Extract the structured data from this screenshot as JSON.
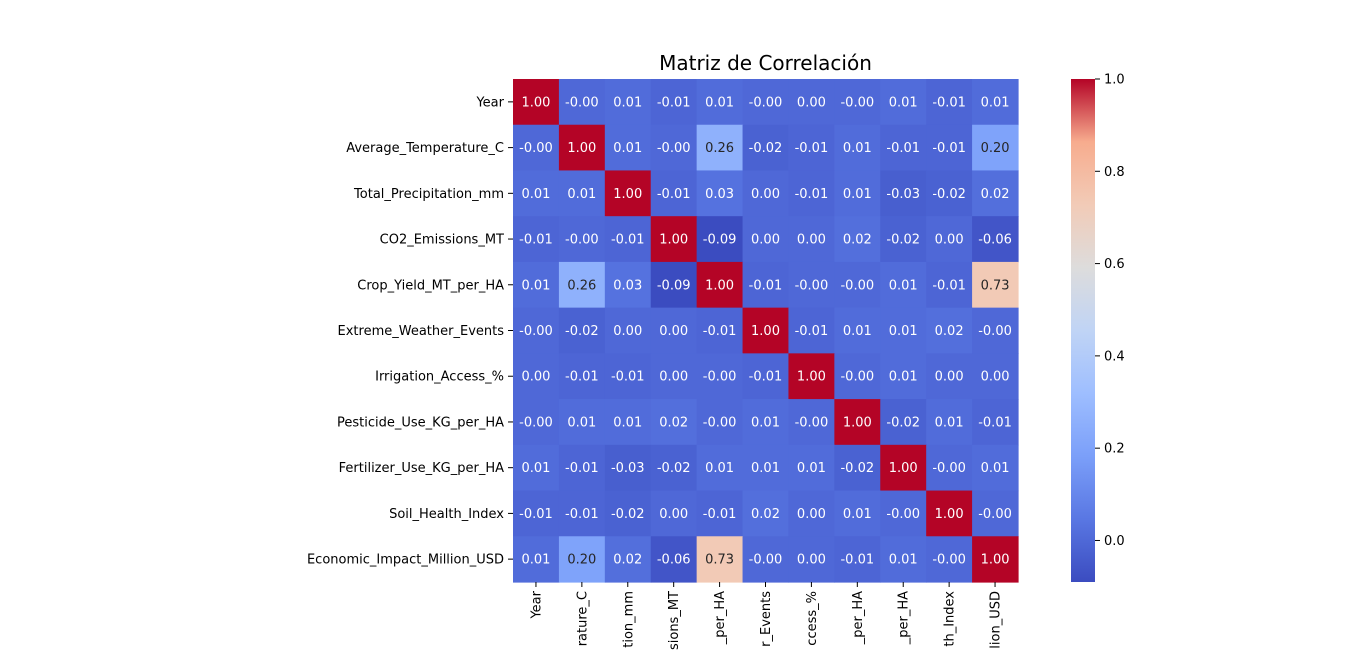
{
  "chart_data": {
    "type": "heatmap",
    "title": "Matriz de Correlación",
    "row_labels": [
      "Year",
      "Average_Temperature_C",
      "Total_Precipitation_mm",
      "CO2_Emissions_MT",
      "Crop_Yield_MT_per_HA",
      "Extreme_Weather_Events",
      "Irrigation_Access_%",
      "Pesticide_Use_KG_per_HA",
      "Fertilizer_Use_KG_per_HA",
      "Soil_Health_Index",
      "Economic_Impact_Million_USD"
    ],
    "col_labels_visible": [
      "Year",
      "rature_C",
      "tion_mm",
      "sions_MT",
      "_per_HA",
      "r_Events",
      "ccess_%",
      "_per_HA",
      "_per_HA",
      "th_Index",
      "lion_USD"
    ],
    "values": [
      [
        1.0,
        -0.0,
        0.01,
        -0.01,
        0.01,
        -0.0,
        0.0,
        -0.0,
        0.01,
        -0.01,
        0.01
      ],
      [
        -0.0,
        1.0,
        0.01,
        -0.0,
        0.26,
        -0.02,
        -0.01,
        0.01,
        -0.01,
        -0.01,
        0.2
      ],
      [
        0.01,
        0.01,
        1.0,
        -0.01,
        0.03,
        0.0,
        -0.01,
        0.01,
        -0.03,
        -0.02,
        0.02
      ],
      [
        -0.01,
        -0.0,
        -0.01,
        1.0,
        -0.09,
        0.0,
        0.0,
        0.02,
        -0.02,
        0.0,
        -0.06
      ],
      [
        0.01,
        0.26,
        0.03,
        -0.09,
        1.0,
        -0.01,
        -0.0,
        -0.0,
        0.01,
        -0.01,
        0.73
      ],
      [
        -0.0,
        -0.02,
        0.0,
        0.0,
        -0.01,
        1.0,
        -0.01,
        0.01,
        0.01,
        0.02,
        -0.0
      ],
      [
        0.0,
        -0.01,
        -0.01,
        0.0,
        -0.0,
        -0.01,
        1.0,
        -0.0,
        0.01,
        0.0,
        0.0
      ],
      [
        -0.0,
        0.01,
        0.01,
        0.02,
        -0.0,
        0.01,
        -0.0,
        1.0,
        -0.02,
        0.01,
        -0.01
      ],
      [
        0.01,
        -0.01,
        -0.03,
        -0.02,
        0.01,
        0.01,
        0.01,
        -0.02,
        1.0,
        -0.0,
        0.01
      ],
      [
        -0.01,
        -0.01,
        -0.02,
        0.0,
        -0.01,
        0.02,
        0.0,
        0.01,
        -0.0,
        1.0,
        -0.0
      ],
      [
        0.01,
        0.2,
        0.02,
        -0.06,
        0.73,
        -0.0,
        0.0,
        -0.01,
        0.01,
        -0.0,
        1.0
      ]
    ],
    "colormap": "coolwarm",
    "colorbar_range": [
      -0.09,
      1.0
    ],
    "colorbar_ticks": [
      "0.0",
      "0.2",
      "0.4",
      "0.6",
      "0.8",
      "1.0"
    ],
    "colorbar_tick_values": [
      0.0,
      0.2,
      0.4,
      0.6,
      0.8,
      1.0
    ],
    "annotation_format": "2 decimals"
  }
}
